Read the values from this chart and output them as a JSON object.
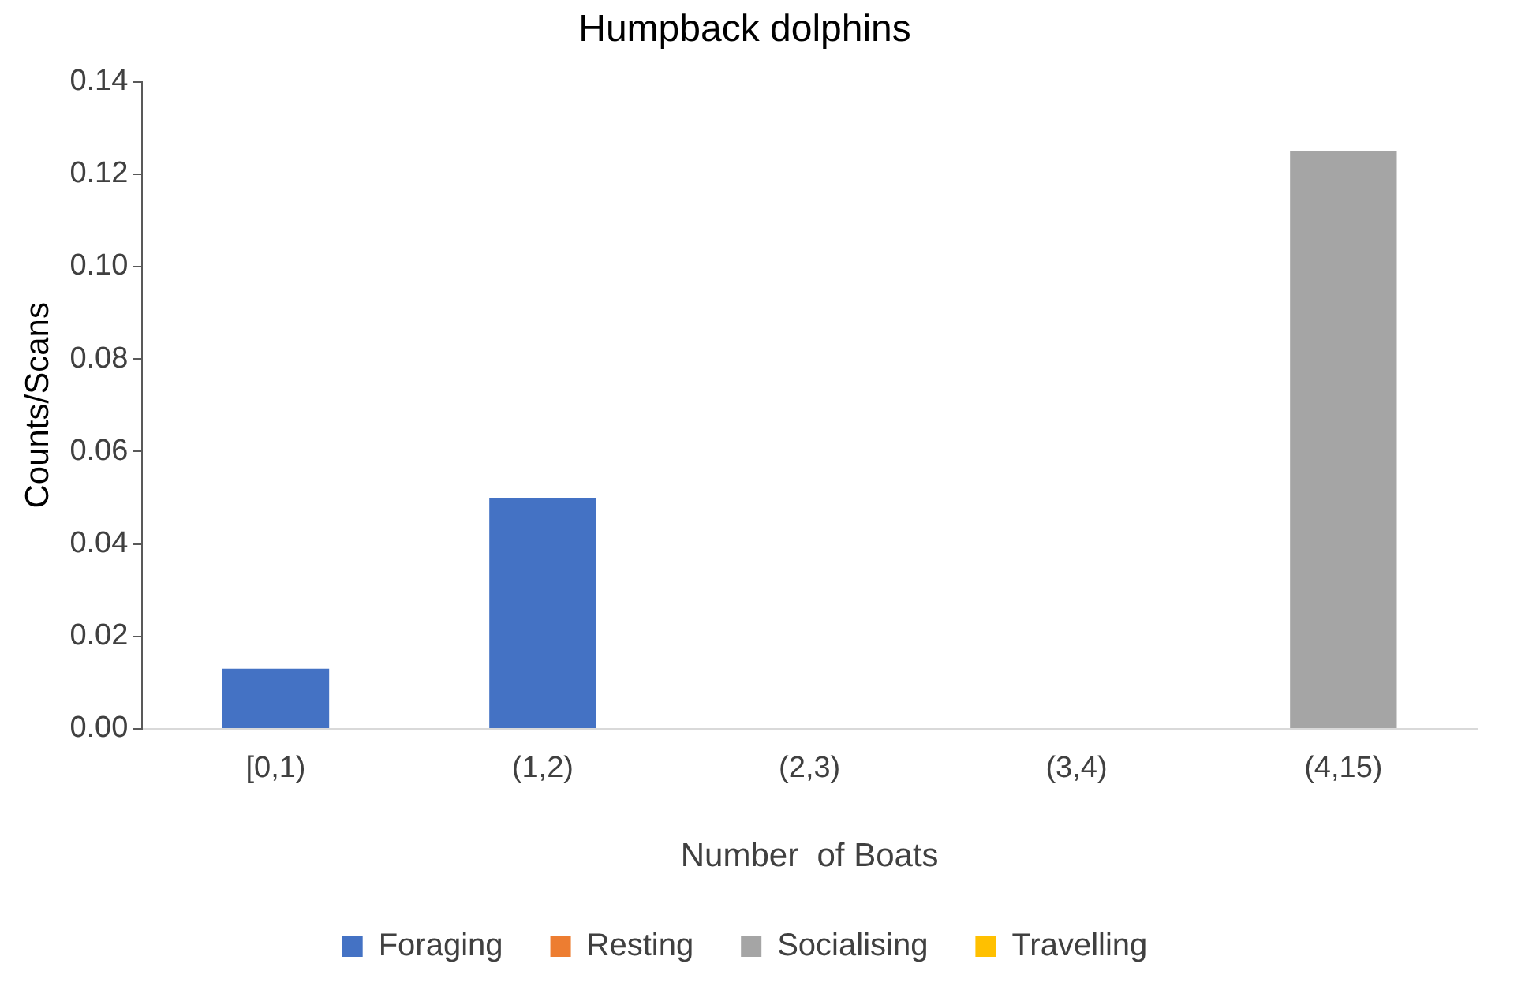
{
  "chart_data": {
    "type": "bar",
    "title": "Humpback dolphins",
    "xlabel": "Number  of Boats",
    "ylabel": "Counts/Scans",
    "categories": [
      "[0,1)",
      "(1,2)",
      "(2,3)",
      "(3,4)",
      "(4,15)"
    ],
    "series": [
      {
        "name": "Foraging",
        "color": "#4472c4",
        "values": [
          0.013,
          0.05,
          0,
          0,
          0
        ]
      },
      {
        "name": "Resting",
        "color": "#ed7d31",
        "values": [
          0,
          0,
          0,
          0,
          0
        ]
      },
      {
        "name": "Socialising",
        "color": "#a5a5a5",
        "values": [
          0,
          0,
          0,
          0,
          0.125
        ]
      },
      {
        "name": "Travelling",
        "color": "#ffc000",
        "values": [
          0,
          0,
          0,
          0,
          0
        ]
      }
    ],
    "stacked": true,
    "ylim": [
      0,
      0.14
    ],
    "yticks": [
      {
        "value": 0,
        "label": "0.00"
      },
      {
        "value": 0.02,
        "label": "0.02"
      },
      {
        "value": 0.04,
        "label": "0.04"
      },
      {
        "value": 0.06,
        "label": "0.06"
      },
      {
        "value": 0.08,
        "label": "0.08"
      },
      {
        "value": 0.1,
        "label": "0.10"
      },
      {
        "value": 0.12,
        "label": "0.12"
      },
      {
        "value": 0.14,
        "label": "0.14"
      }
    ],
    "grid": false,
    "legend": "bottom"
  }
}
